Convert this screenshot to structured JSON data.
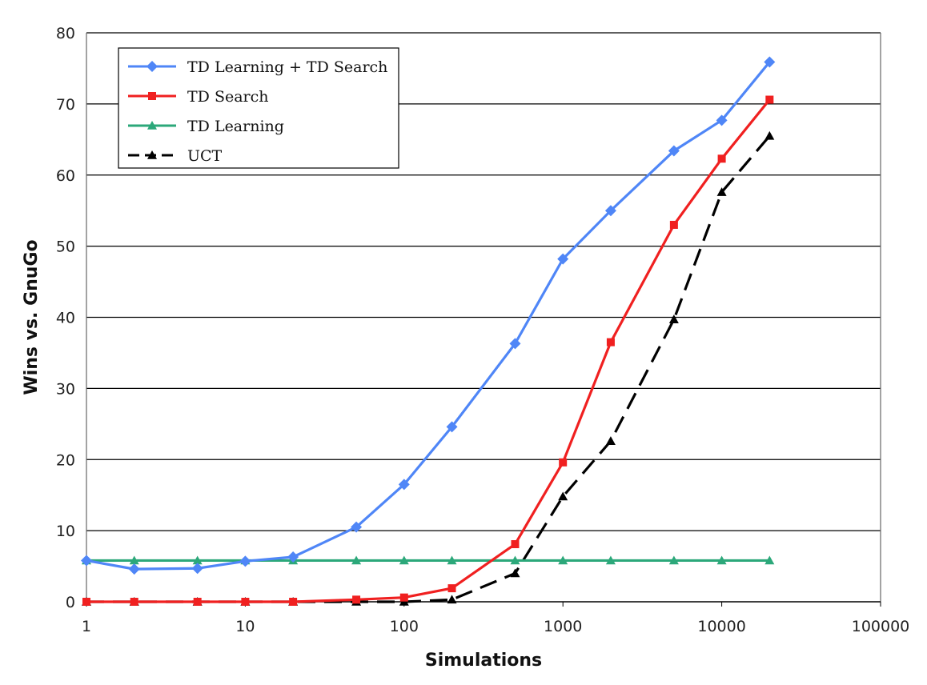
{
  "chart_data": {
    "type": "line",
    "title": "",
    "xlabel": "Simulations",
    "ylabel": "Wins vs. GnuGo",
    "x_scale": "log",
    "xlim": [
      1,
      100000
    ],
    "ylim": [
      0,
      80
    ],
    "x_ticks": [
      "1",
      "10",
      "100",
      "1000",
      "10000",
      "100000"
    ],
    "y_ticks": [
      "0",
      "10",
      "20",
      "30",
      "40",
      "50",
      "60",
      "70",
      "80"
    ],
    "grid": "horizontal",
    "legend_position": "top-left",
    "x": [
      1,
      2,
      5,
      10,
      20,
      50,
      100,
      200,
      500,
      1000,
      2000,
      5000,
      10000,
      20000
    ],
    "series": [
      {
        "name": "TD Learning + TD Search",
        "color": "#4f86f7",
        "marker": "diamond",
        "dash": "solid",
        "values": [
          5.8,
          4.6,
          4.7,
          5.7,
          6.3,
          10.5,
          16.5,
          24.6,
          36.3,
          48.2,
          55.0,
          63.4,
          67.7,
          75.9
        ]
      },
      {
        "name": "TD Search",
        "color": "#f02020",
        "marker": "square",
        "dash": "solid",
        "values": [
          0,
          0,
          0,
          0,
          0,
          0.3,
          0.6,
          1.9,
          8.1,
          19.6,
          36.5,
          53.0,
          62.3,
          70.6
        ]
      },
      {
        "name": "TD Learning",
        "color": "#2ca87a",
        "marker": "triangle",
        "dash": "solid",
        "values": [
          5.8,
          5.8,
          5.8,
          5.8,
          5.8,
          5.8,
          5.8,
          5.8,
          5.8,
          5.8,
          5.8,
          5.8,
          5.8,
          5.8
        ]
      },
      {
        "name": "UCT",
        "color": "#000000",
        "marker": "triangle",
        "dash": "dashed",
        "values": [
          0,
          0,
          0,
          0,
          0,
          0,
          0,
          0.3,
          4.0,
          14.8,
          22.6,
          39.7,
          57.6,
          65.5
        ]
      }
    ]
  }
}
